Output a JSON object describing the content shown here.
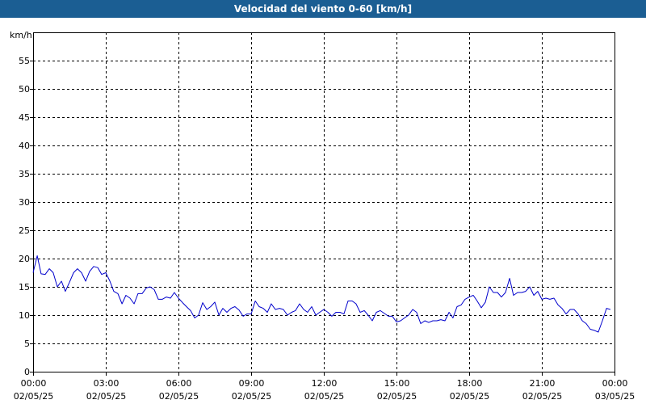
{
  "window": {
    "title": "Velocidad del viento 0-60 [km/h]"
  },
  "chart_data": {
    "type": "line",
    "title": "Velocidad del viento 0-60 [km/h]",
    "xlabel": "",
    "ylabel": "km/h",
    "ylim": [
      0,
      60
    ],
    "yticks": [
      0,
      5,
      10,
      15,
      20,
      25,
      30,
      35,
      40,
      45,
      50,
      55
    ],
    "xlim_hours": [
      0,
      24
    ],
    "xticks": [
      {
        "time": "00:00",
        "date": "02/05/25"
      },
      {
        "time": "03:00",
        "date": "02/05/25"
      },
      {
        "time": "06:00",
        "date": "02/05/25"
      },
      {
        "time": "09:00",
        "date": "02/05/25"
      },
      {
        "time": "12:00",
        "date": "02/05/25"
      },
      {
        "time": "15:00",
        "date": "02/05/25"
      },
      {
        "time": "18:00",
        "date": "02/05/25"
      },
      {
        "time": "21:00",
        "date": "02/05/25"
      },
      {
        "time": "00:00",
        "date": "03/05/25"
      }
    ],
    "grid": true,
    "line_color": "#0000cc",
    "series": [
      {
        "x": [
          0.0,
          0.17,
          0.33,
          0.5,
          0.67,
          0.83,
          1.0,
          1.17,
          1.33,
          1.5,
          1.67,
          1.83,
          2.0,
          2.17,
          2.33,
          2.5,
          2.67,
          2.83,
          3.0,
          3.17,
          3.33,
          3.5,
          3.67,
          3.83,
          4.0,
          4.17,
          4.33,
          4.5,
          4.67,
          4.83,
          5.0,
          5.17,
          5.33,
          5.5,
          5.67,
          5.83,
          6.0,
          6.17,
          6.33,
          6.5,
          6.67,
          6.83,
          7.0,
          7.17,
          7.33,
          7.5,
          7.67,
          7.83,
          8.0,
          8.17,
          8.33,
          8.5,
          8.67,
          8.83,
          9.0,
          9.17,
          9.33,
          9.5,
          9.67,
          9.83,
          10.0,
          10.17,
          10.33,
          10.5,
          10.67,
          10.83,
          11.0,
          11.17,
          11.33,
          11.5,
          11.67,
          11.83,
          12.0,
          12.17,
          12.33,
          12.5,
          12.67,
          12.83,
          13.0,
          13.17,
          13.33,
          13.5,
          13.67,
          13.83,
          14.0,
          14.17,
          14.33,
          14.5,
          14.67,
          14.83,
          15.0,
          15.17,
          15.33,
          15.5,
          15.67,
          15.83,
          16.0,
          16.17,
          16.33,
          16.5,
          16.67,
          16.83,
          17.0,
          17.17,
          17.33,
          17.5,
          17.67,
          17.83,
          18.0,
          18.17,
          18.33,
          18.5,
          18.67,
          18.83,
          19.0,
          19.17,
          19.33,
          19.5,
          19.67,
          19.83,
          20.0,
          20.17,
          20.33,
          20.5,
          20.67,
          20.83,
          21.0,
          21.17,
          21.33,
          21.5,
          21.67,
          21.83,
          22.0,
          22.17,
          22.33,
          22.5,
          22.67,
          22.83,
          23.0,
          23.17,
          23.33,
          23.5,
          23.67,
          23.83
        ],
        "values": [
          17.5,
          20.5,
          17.3,
          17.2,
          18.2,
          17.5,
          15.0,
          16.0,
          14.2,
          15.8,
          17.5,
          18.2,
          17.5,
          16.0,
          17.7,
          18.6,
          18.4,
          17.2,
          17.5,
          16.0,
          14.2,
          13.8,
          12.0,
          13.5,
          13.0,
          12.0,
          13.8,
          13.8,
          14.8,
          15.0,
          14.5,
          12.8,
          12.8,
          13.2,
          13.0,
          14.0,
          13.0,
          12.2,
          11.5,
          10.8,
          9.5,
          10.0,
          12.2,
          11.0,
          11.5,
          12.3,
          10.0,
          11.2,
          10.5,
          11.2,
          11.5,
          10.9,
          9.8,
          10.2,
          10.2,
          12.5,
          11.5,
          11.2,
          10.5,
          12.0,
          11.0,
          11.2,
          11.0,
          10.0,
          10.5,
          10.8,
          12.0,
          11.0,
          10.5,
          11.5,
          10.0,
          10.5,
          11.0,
          10.5,
          9.8,
          10.5,
          10.5,
          10.2,
          12.5,
          12.5,
          12.0,
          10.5,
          10.8,
          10.0,
          9.0,
          10.5,
          10.8,
          10.3,
          9.8,
          9.8,
          8.8,
          9.0,
          9.5,
          10.0,
          11.0,
          10.5,
          8.5,
          9.0,
          8.7,
          9.0,
          9.0,
          9.2,
          9.0,
          10.5,
          9.5,
          11.5,
          11.8,
          12.8,
          13.2,
          13.5,
          12.5,
          11.3,
          12.3,
          15.0,
          14.0,
          14.0,
          13.2,
          14.0,
          16.5,
          13.5,
          14.0,
          14.0,
          14.2,
          15.0,
          13.5,
          14.2,
          12.8,
          13.0,
          12.8,
          13.0,
          11.8,
          11.2,
          10.2,
          11.0,
          11.0,
          10.2,
          9.0,
          8.5,
          7.5,
          7.3,
          7.0,
          9.0,
          11.2,
          11.0
        ]
      }
    ]
  }
}
